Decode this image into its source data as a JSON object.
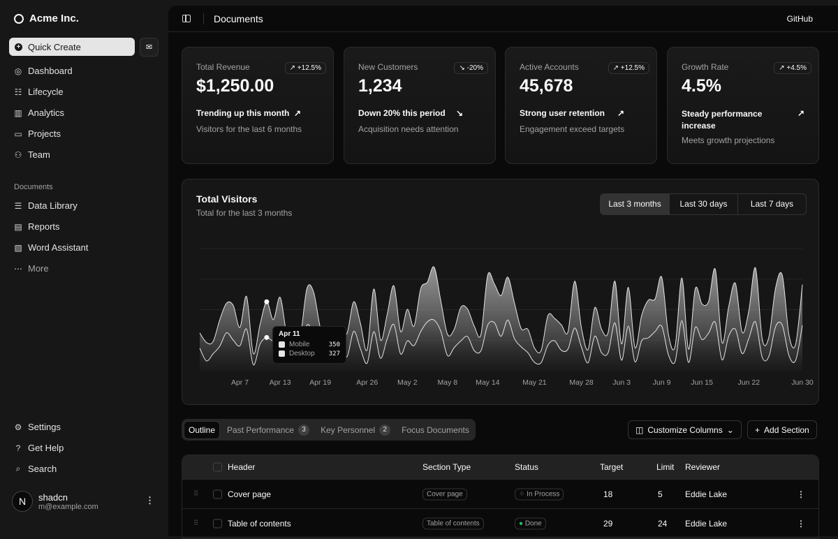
{
  "sidebar": {
    "brand": "Acme Inc.",
    "quick_create": "Quick Create",
    "nav": [
      {
        "label": "Dashboard",
        "icon": "gauge-icon"
      },
      {
        "label": "Lifecycle",
        "icon": "list-details-icon"
      },
      {
        "label": "Analytics",
        "icon": "chart-bar-icon"
      },
      {
        "label": "Projects",
        "icon": "folder-icon"
      },
      {
        "label": "Team",
        "icon": "users-icon"
      }
    ],
    "section_label": "Documents",
    "docs": [
      {
        "label": "Data Library",
        "icon": "database-icon"
      },
      {
        "label": "Reports",
        "icon": "report-icon"
      },
      {
        "label": "Word Assistant",
        "icon": "file-word-icon"
      },
      {
        "label": "More",
        "icon": "dots-icon"
      }
    ],
    "secondary": [
      {
        "label": "Settings",
        "icon": "settings-icon"
      },
      {
        "label": "Get Help",
        "icon": "help-icon"
      },
      {
        "label": "Search",
        "icon": "search-icon"
      }
    ],
    "user": {
      "initial": "N",
      "name": "shadcn",
      "email": "m@example.com"
    }
  },
  "header": {
    "title": "Documents",
    "github": "GitHub"
  },
  "cards": [
    {
      "label": "Total Revenue",
      "value": "$1,250.00",
      "badge": "↗ +12.5%",
      "footer": "Trending up this month",
      "trend": "↗",
      "sub": "Visitors for the last 6 months"
    },
    {
      "label": "New Customers",
      "value": "1,234",
      "badge": "↘ -20%",
      "footer": "Down 20% this period",
      "trend": "↘",
      "sub": "Acquisition needs attention"
    },
    {
      "label": "Active Accounts",
      "value": "45,678",
      "badge": "↗ +12.5%",
      "footer": "Strong user retention",
      "trend": "↗",
      "sub": "Engagement exceed targets"
    },
    {
      "label": "Growth Rate",
      "value": "4.5%",
      "badge": "↗ +4.5%",
      "footer": "Steady performance increase",
      "trend": "↗",
      "sub": "Meets growth projections"
    }
  ],
  "chart_section": {
    "title": "Total Visitors",
    "subtitle": "Total for the last 3 months",
    "ranges": [
      "Last 3 months",
      "Last 30 days",
      "Last 7 days"
    ],
    "selected_range": "Last 3 months",
    "tooltip": {
      "date": "Apr 11",
      "mobile_label": "Mobile",
      "mobile": "350",
      "desktop_label": "Desktop",
      "desktop": "327"
    }
  },
  "chart_data": {
    "type": "area",
    "stacked": true,
    "grid": true,
    "ylim": [
      0,
      1200
    ],
    "x_tick_labels": [
      "Apr 7",
      "Apr 13",
      "Apr 19",
      "Apr 26",
      "May 2",
      "May 8",
      "May 14",
      "May 21",
      "May 28",
      "Jun 3",
      "Jun 9",
      "Jun 15",
      "Jun 22",
      "Jun 30"
    ],
    "x_tick_dates": [
      "04-07",
      "04-13",
      "04-19",
      "04-26",
      "05-02",
      "05-08",
      "05-14",
      "05-21",
      "05-28",
      "06-03",
      "06-09",
      "06-15",
      "06-22",
      "06-30"
    ],
    "x": [
      "04-01",
      "04-02",
      "04-03",
      "04-04",
      "04-05",
      "04-06",
      "04-07",
      "04-08",
      "04-09",
      "04-10",
      "04-11",
      "04-12",
      "04-13",
      "04-14",
      "04-15",
      "04-16",
      "04-17",
      "04-18",
      "04-19",
      "04-20",
      "04-21",
      "04-22",
      "04-23",
      "04-24",
      "04-25",
      "04-26",
      "04-27",
      "04-28",
      "04-29",
      "04-30",
      "05-01",
      "05-02",
      "05-03",
      "05-04",
      "05-05",
      "05-06",
      "05-07",
      "05-08",
      "05-09",
      "05-10",
      "05-11",
      "05-12",
      "05-13",
      "05-14",
      "05-15",
      "05-16",
      "05-17",
      "05-18",
      "05-19",
      "05-20",
      "05-21",
      "05-22",
      "05-23",
      "05-24",
      "05-25",
      "05-26",
      "05-27",
      "05-28",
      "05-29",
      "05-30",
      "05-31",
      "06-01",
      "06-02",
      "06-03",
      "06-04",
      "06-05",
      "06-06",
      "06-07",
      "06-08",
      "06-09",
      "06-10",
      "06-11",
      "06-12",
      "06-13",
      "06-14",
      "06-15",
      "06-16",
      "06-17",
      "06-18",
      "06-19",
      "06-20",
      "06-21",
      "06-22",
      "06-23",
      "06-24",
      "06-25",
      "06-26",
      "06-27",
      "06-28",
      "06-29",
      "06-30"
    ],
    "series": [
      {
        "name": "Desktop",
        "values": [
          222,
          97,
          167,
          242,
          373,
          301,
          245,
          409,
          59,
          261,
          327,
          292,
          342,
          137,
          120,
          138,
          446,
          364,
          243,
          89,
          137,
          224,
          138,
          387,
          215,
          75,
          383,
          122,
          315,
          454,
          165,
          293,
          247,
          385,
          481,
          498,
          388,
          149,
          227,
          293,
          335,
          197,
          197,
          448,
          473,
          338,
          499,
          315,
          235,
          177,
          82,
          81,
          252,
          294,
          201,
          213,
          420,
          233,
          78,
          340,
          178,
          178,
          470,
          103,
          439,
          88,
          294,
          323,
          385,
          438,
          155,
          92,
          492,
          81,
          426,
          307,
          371,
          475,
          107,
          341,
          408,
          169,
          317,
          480,
          132,
          141,
          434,
          448,
          149,
          103,
          446
        ]
      },
      {
        "name": "Mobile",
        "values": [
          150,
          180,
          120,
          260,
          290,
          340,
          180,
          320,
          110,
          190,
          350,
          210,
          380,
          220,
          170,
          190,
          360,
          410,
          180,
          150,
          200,
          170,
          230,
          290,
          250,
          130,
          420,
          180,
          240,
          380,
          220,
          310,
          190,
          420,
          390,
          520,
          300,
          210,
          180,
          330,
          270,
          240,
          160,
          490,
          380,
          400,
          420,
          350,
          180,
          230,
          140,
          120,
          290,
          220,
          250,
          170,
          460,
          190,
          130,
          280,
          230,
          200,
          410,
          160,
          380,
          140,
          250,
          370,
          320,
          480,
          200,
          150,
          420,
          130,
          380,
          350,
          310,
          520,
          170,
          290,
          450,
          210,
          270,
          530,
          180,
          190,
          380,
          490,
          200,
          160,
          400
        ]
      }
    ],
    "colors": {
      "mobile": "#a3a3a3",
      "desktop": "#737373",
      "line": "#e5e5e5"
    }
  },
  "table_section": {
    "tabs": [
      {
        "label": "Outline"
      },
      {
        "label": "Past Performance",
        "count": "3"
      },
      {
        "label": "Key Personnel",
        "count": "2"
      },
      {
        "label": "Focus Documents"
      }
    ],
    "customize": "Customize Columns",
    "add": "Add Section",
    "columns": [
      "Header",
      "Section Type",
      "Status",
      "Target",
      "Limit",
      "Reviewer"
    ],
    "rows": [
      {
        "header": "Cover page",
        "type": "Cover page",
        "status": "In Process",
        "target": "18",
        "limit": "5",
        "reviewer": "Eddie Lake"
      },
      {
        "header": "Table of contents",
        "type": "Table of contents",
        "status": "Done",
        "target": "29",
        "limit": "24",
        "reviewer": "Eddie Lake"
      }
    ]
  }
}
